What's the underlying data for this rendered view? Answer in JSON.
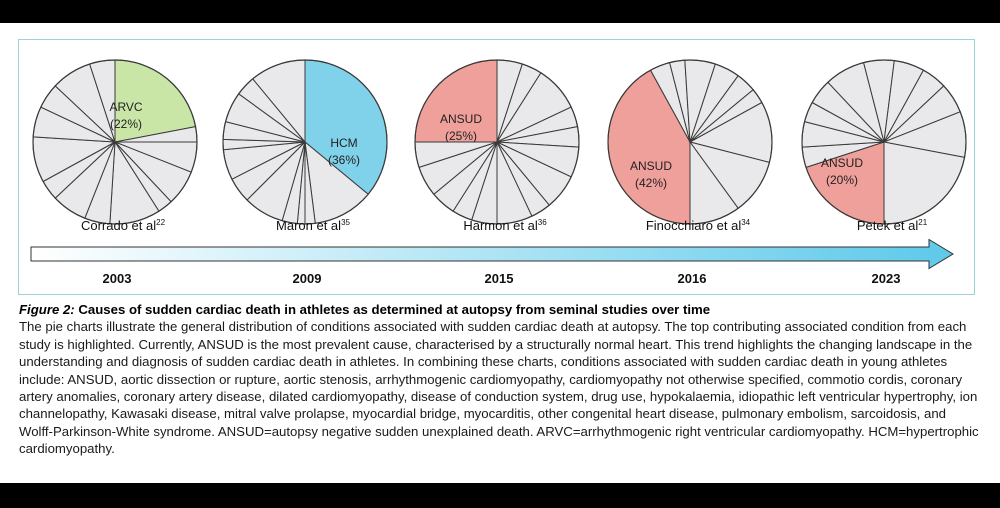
{
  "figure": {
    "number": "Figure 2:",
    "title": "Causes of sudden cardiac death in athletes as determined at autopsy from seminal studies over time",
    "caption": "The pie charts illustrate the general distribution of conditions associated with sudden cardiac death at autopsy. The top contributing associated condition from each study is highlighted. Currently, ANSUD is the most prevalent cause, characterised by a structurally normal heart. This trend highlights the changing landscape in the understanding and diagnosis of sudden cardiac death in athletes. In combining these charts, conditions associated with sudden cardiac death in young athletes include: ANSUD, aortic dissection or rupture, aortic stenosis, arrhythmogenic cardiomyopathy, cardiomyopathy not otherwise specified, commotio cordis, coronary artery anomalies, coronary artery disease, dilated cardiomyopathy, disease of conduction system, drug use, hypokalaemia, idiopathic left ventricular hypertrophy, ion channelopathy, Kawasaki disease, mitral valve prolapse, myocardial bridge, myocarditis, other congenital heart disease, pulmonary embolism, sarcoidosis, and Wolff-Parkinson-White syndrome. ANSUD=autopsy negative sudden unexplained death. ARVC=arrhythmogenic right ventricular cardiomyopathy. HCM=hypertrophic cardiomyopathy."
  },
  "colors": {
    "pie_fill": "#e9e9ec",
    "pie_stroke": "#3a3a3a",
    "arrow_start": "#ffffff",
    "arrow_end": "#5dc9ea"
  },
  "chart_data": {
    "type": "pie",
    "timeline": [
      "2003",
      "2009",
      "2015",
      "2016",
      "2023"
    ],
    "studies": [
      {
        "study": "Corrado et al",
        "ref": "22",
        "year": "2003",
        "highlight": {
          "name": "ARVC",
          "percent": 22,
          "text": "(22%)",
          "color": "#c9e6a7"
        },
        "other_slices": [
          3,
          6,
          7,
          3,
          10,
          5,
          7,
          4,
          9,
          6,
          5,
          8,
          5
        ]
      },
      {
        "study": "Maron et al",
        "ref": "35",
        "year": "2009",
        "highlight": {
          "name": "HCM",
          "percent": 36,
          "text": "(36%)",
          "color": "#7fd2ea"
        },
        "other_slices": [
          12,
          2,
          1.5,
          3,
          8,
          5,
          6,
          2,
          3.5,
          6,
          4,
          11
        ]
      },
      {
        "study": "Harmon et al",
        "ref": "36",
        "year": "2015",
        "highlight": {
          "name": "ANSUD",
          "percent": 25,
          "text": "(25%)",
          "color": "#f0a09b"
        },
        "other_slices": [
          5,
          4,
          9,
          4,
          4,
          6,
          7,
          4,
          7,
          5,
          4,
          5,
          6,
          5
        ]
      },
      {
        "study": "Finocchiaro et al",
        "ref": "34",
        "year": "2016",
        "highlight": {
          "name": "ANSUD",
          "percent": 42,
          "text": "(42%)",
          "color": "#f0a09b"
        },
        "other_slices": [
          4,
          3,
          6,
          5,
          4,
          3,
          12,
          11,
          10
        ]
      },
      {
        "study": "Petek et al",
        "ref": "21",
        "year": "2023",
        "highlight": {
          "name": "ANSUD",
          "percent": 20,
          "text": "(20%)",
          "color": "#f0a09b"
        },
        "other_slices": [
          4,
          5,
          4,
          5,
          8,
          6,
          6,
          5,
          6,
          9,
          22
        ]
      }
    ]
  }
}
